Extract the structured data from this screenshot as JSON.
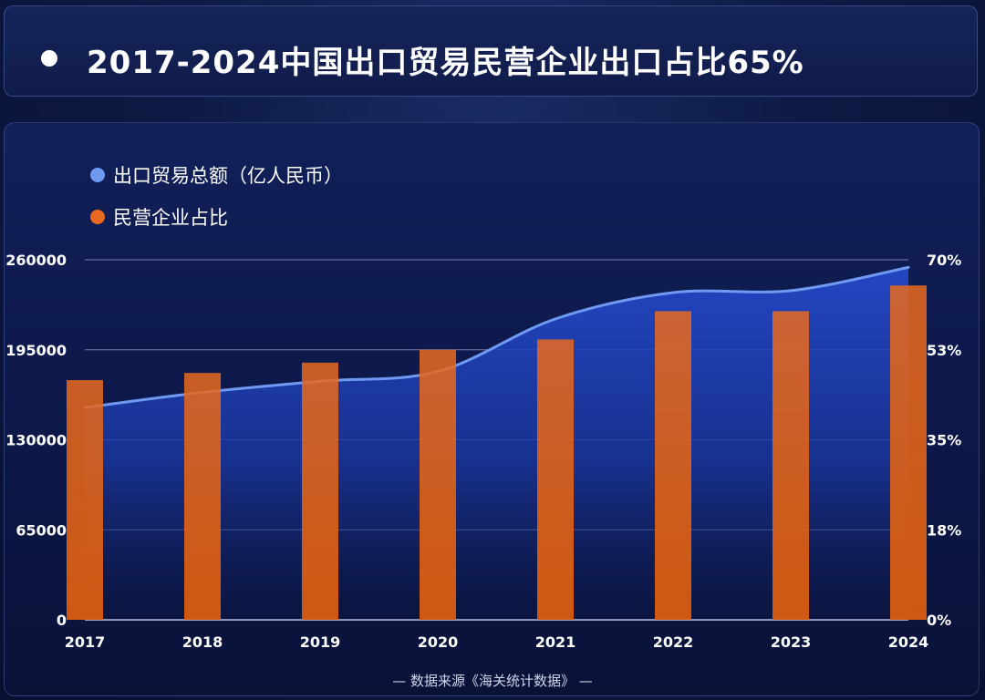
{
  "header": {
    "title": "2017-2024中国出口贸易民营企业出口占比65%"
  },
  "chart_data": {
    "type": "bar+area",
    "categories": [
      "2017",
      "2018",
      "2019",
      "2020",
      "2021",
      "2022",
      "2023",
      "2024"
    ],
    "series": [
      {
        "name": "出口贸易总额（亿人民币）",
        "type": "area",
        "axis": "left",
        "color": "#6f9af2",
        "values": [
          153300,
          164200,
          172300,
          179300,
          217300,
          236300,
          237700,
          254500
        ]
      },
      {
        "name": "民营企业占比",
        "type": "bar",
        "axis": "right",
        "color": "#e8691f",
        "values": [
          46.6,
          48.0,
          50.0,
          52.5,
          54.5,
          60.0,
          60.0,
          65.0
        ]
      }
    ],
    "left_axis": {
      "min": 0,
      "max": 260000,
      "ticks": [
        "0",
        "65000",
        "130000",
        "195000",
        "260000"
      ]
    },
    "right_axis": {
      "min": 0,
      "max": 70,
      "ticks": [
        "0%",
        "18%",
        "35%",
        "53%",
        "70%"
      ]
    },
    "grid": true,
    "legend": "top-left",
    "source": "—    数据来源《海关统计数据》    —"
  }
}
